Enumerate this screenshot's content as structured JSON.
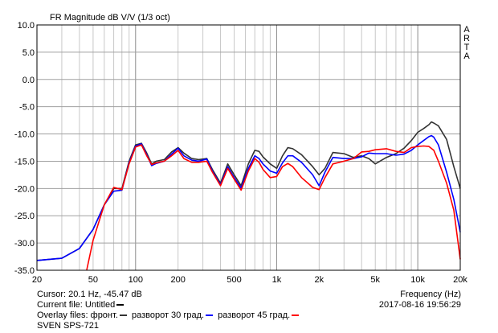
{
  "chart_data": {
    "type": "line",
    "title": "FR Magnitude dB V/V (1/3 oct)",
    "brand": "ARTA",
    "xlabel": "Frequency (Hz)",
    "x_scale": "log",
    "xlim": [
      20,
      20000
    ],
    "ylim": [
      -35,
      10
    ],
    "grid": true,
    "x_tick_labels": [
      {
        "value": 20,
        "label": "20"
      },
      {
        "value": 50,
        "label": "50"
      },
      {
        "value": 100,
        "label": "100"
      },
      {
        "value": 200,
        "label": "200"
      },
      {
        "value": 500,
        "label": "500"
      },
      {
        "value": 1000,
        "label": "1k"
      },
      {
        "value": 2000,
        "label": "2k"
      },
      {
        "value": 5000,
        "label": "5k"
      },
      {
        "value": 10000,
        "label": "10k"
      },
      {
        "value": 20000,
        "label": "20k"
      }
    ],
    "y_tick_labels": [
      "10.0",
      "5.0",
      "0.0",
      "-5.0",
      "-10.0",
      "-15.0",
      "-20.0",
      "-25.0",
      "-30.0",
      "-35.0"
    ],
    "series": [
      {
        "name": "фронт.",
        "color": "#333333",
        "x": [
          20,
          30,
          40,
          50,
          60,
          70,
          80,
          90,
          100,
          110,
          120,
          130,
          140,
          160,
          180,
          200,
          220,
          250,
          280,
          320,
          350,
          400,
          450,
          500,
          560,
          630,
          700,
          750,
          800,
          900,
          1000,
          1100,
          1200,
          1300,
          1500,
          1800,
          2000,
          2200,
          2500,
          3000,
          3500,
          4000,
          4500,
          5000,
          6000,
          7000,
          8000,
          9000,
          10000,
          11000,
          12000,
          12500,
          13000,
          14000,
          16000,
          18000,
          20000
        ],
        "y": [
          -33.2,
          -32.8,
          -31,
          -27.5,
          -23,
          -20,
          -20,
          -15,
          -12,
          -11.7,
          -13.5,
          -15.5,
          -15,
          -14.7,
          -13.3,
          -12.5,
          -13.5,
          -14.5,
          -14.7,
          -14.5,
          -16.5,
          -19,
          -15.5,
          -17.5,
          -19.5,
          -15.5,
          -13,
          -13.2,
          -14.2,
          -15.5,
          -16.3,
          -14,
          -12.5,
          -12.7,
          -13.8,
          -16,
          -17.5,
          -16.3,
          -13.4,
          -13.6,
          -14.3,
          -14,
          -14.5,
          -15.5,
          -14.3,
          -13.6,
          -12.6,
          -11.2,
          -9.7,
          -9,
          -8.3,
          -7.8,
          -8,
          -8.5,
          -11,
          -16,
          -20
        ]
      },
      {
        "name": "разворот 30 град.",
        "color": "#0000ff",
        "x": [
          20,
          30,
          40,
          50,
          60,
          70,
          80,
          90,
          100,
          110,
          120,
          130,
          140,
          160,
          180,
          200,
          220,
          250,
          280,
          320,
          350,
          400,
          450,
          500,
          560,
          630,
          700,
          750,
          800,
          900,
          1000,
          1100,
          1200,
          1300,
          1500,
          1800,
          2000,
          2200,
          2500,
          3000,
          3500,
          4000,
          4500,
          5000,
          6000,
          7000,
          8000,
          9000,
          10000,
          11000,
          12000,
          12500,
          13000,
          14000,
          16000,
          18000,
          20000
        ],
        "y": [
          -33.2,
          -32.8,
          -31,
          -27.5,
          -23,
          -20.5,
          -20.3,
          -15.3,
          -12.2,
          -11.8,
          -13.8,
          -15.8,
          -15.4,
          -15,
          -13.7,
          -12.6,
          -14,
          -14.8,
          -15,
          -14.6,
          -16.8,
          -19.3,
          -16,
          -18,
          -19.9,
          -16.3,
          -14,
          -14.5,
          -15.5,
          -16.8,
          -17.2,
          -15.3,
          -14,
          -14,
          -15.2,
          -17.5,
          -19.5,
          -17,
          -14.3,
          -14.5,
          -14.5,
          -14.2,
          -13.5,
          -13.6,
          -13.6,
          -13.9,
          -13.7,
          -13,
          -12,
          -11.2,
          -10.5,
          -10.3,
          -10.6,
          -12,
          -17,
          -22,
          -28
        ]
      },
      {
        "name": "разворот 45 град.",
        "color": "#ff0000",
        "x": [
          45,
          50,
          60,
          70,
          80,
          90,
          100,
          110,
          120,
          130,
          140,
          160,
          180,
          200,
          220,
          250,
          280,
          320,
          350,
          400,
          450,
          500,
          560,
          630,
          700,
          750,
          800,
          900,
          1000,
          1100,
          1200,
          1300,
          1500,
          1800,
          2000,
          2200,
          2500,
          3000,
          3500,
          4000,
          4500,
          5000,
          6000,
          7000,
          8000,
          9000,
          10000,
          11000,
          12000,
          13000,
          14000,
          16000,
          18000,
          20000
        ],
        "y": [
          -35,
          -29.5,
          -23,
          -19.8,
          -20.2,
          -15.5,
          -12.4,
          -12,
          -14,
          -15.6,
          -15.3,
          -15,
          -14,
          -13,
          -14.5,
          -15.2,
          -15.2,
          -15,
          -17,
          -19.5,
          -16.3,
          -18.3,
          -20.3,
          -16.8,
          -14.5,
          -15.2,
          -16.5,
          -18,
          -17.8,
          -16,
          -15.4,
          -16,
          -18,
          -19.8,
          -20.2,
          -18,
          -15.5,
          -15,
          -14.5,
          -13.3,
          -13.2,
          -12.9,
          -12.7,
          -13.2,
          -13.4,
          -12.5,
          -12.3,
          -12.2,
          -12.3,
          -13,
          -15,
          -19,
          -24,
          -33
        ]
      }
    ]
  },
  "cursor_text": "Cursor: 20.1 Hz, -45.47 dB",
  "current_file": {
    "label": "Current file: Untitled",
    "color": "#000000"
  },
  "overlay": {
    "prefix": "Overlay files:",
    "items": [
      {
        "name": "фронт.",
        "color": "#333333"
      },
      {
        "name": "разворот 30 град.",
        "color": "#0000ff"
      },
      {
        "name": "разворот 45 град.",
        "color": "#ff0000"
      }
    ]
  },
  "device_name": "SVEN SPS-721",
  "timestamp": "2017-08-16  19:56:29"
}
